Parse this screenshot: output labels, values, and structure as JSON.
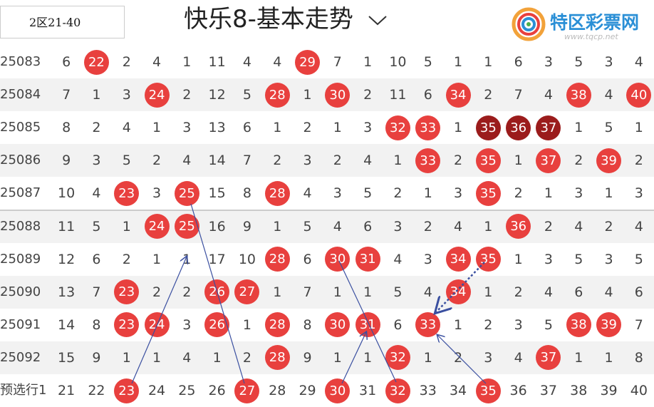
{
  "header": {
    "label": "2区21-40",
    "title": "快乐8-基本走势",
    "logo": "特区彩票网",
    "url": "www.tqcp.net"
  },
  "table": {
    "rows": [
      {
        "period": "25083",
        "cells": [
          6,
          {
            "value": 22,
            "mark": "red"
          },
          2,
          4,
          1,
          11,
          4,
          4,
          {
            "value": 29,
            "mark": "red"
          },
          7,
          1,
          10,
          5,
          1,
          1,
          6,
          3,
          5,
          3,
          4
        ]
      },
      {
        "period": "25084",
        "cells": [
          7,
          1,
          3,
          {
            "value": 24,
            "mark": "red"
          },
          2,
          12,
          5,
          {
            "value": 28,
            "mark": "red"
          },
          1,
          {
            "value": 30,
            "mark": "red"
          },
          2,
          11,
          6,
          {
            "value": 34,
            "mark": "red"
          },
          2,
          7,
          4,
          {
            "value": 38,
            "mark": "red"
          },
          4,
          {
            "value": 40,
            "mark": "red"
          }
        ]
      },
      {
        "period": "25085",
        "cells": [
          8,
          2,
          4,
          1,
          3,
          13,
          6,
          1,
          2,
          1,
          3,
          {
            "value": 32,
            "mark": "red"
          },
          {
            "value": 33,
            "mark": "red"
          },
          1,
          {
            "value": 35,
            "mark": "dark"
          },
          {
            "value": 36,
            "mark": "dark"
          },
          {
            "value": 37,
            "mark": "dark"
          },
          1,
          5,
          1
        ]
      },
      {
        "period": "25086",
        "cells": [
          9,
          3,
          5,
          2,
          4,
          14,
          7,
          2,
          3,
          2,
          4,
          1,
          {
            "value": 33,
            "mark": "red"
          },
          2,
          {
            "value": 35,
            "mark": "red"
          },
          1,
          {
            "value": 37,
            "mark": "red"
          },
          2,
          {
            "value": 39,
            "mark": "red"
          },
          2
        ]
      },
      {
        "period": "25087",
        "cells": [
          10,
          4,
          {
            "value": 23,
            "mark": "red"
          },
          3,
          {
            "value": 25,
            "mark": "red"
          },
          15,
          8,
          {
            "value": 28,
            "mark": "red"
          },
          4,
          3,
          5,
          2,
          1,
          3,
          {
            "value": 35,
            "mark": "red"
          },
          2,
          1,
          3,
          1,
          3
        ]
      },
      {
        "period": "25088",
        "cells": [
          11,
          5,
          1,
          {
            "value": 24,
            "mark": "red"
          },
          {
            "value": 25,
            "mark": "red"
          },
          16,
          9,
          1,
          5,
          4,
          6,
          3,
          2,
          4,
          1,
          {
            "value": 36,
            "mark": "red"
          },
          2,
          4,
          2,
          4
        ]
      },
      {
        "period": "25089",
        "cells": [
          12,
          6,
          2,
          1,
          1,
          17,
          10,
          {
            "value": 28,
            "mark": "red"
          },
          6,
          {
            "value": 30,
            "mark": "red"
          },
          {
            "value": 31,
            "mark": "red"
          },
          4,
          3,
          {
            "value": 34,
            "mark": "red"
          },
          {
            "value": 35,
            "mark": "red"
          },
          1,
          3,
          5,
          3,
          5
        ]
      },
      {
        "period": "25090",
        "cells": [
          13,
          7,
          {
            "value": 23,
            "mark": "red"
          },
          2,
          2,
          {
            "value": 26,
            "mark": "red"
          },
          {
            "value": 27,
            "mark": "red"
          },
          1,
          7,
          1,
          1,
          5,
          4,
          {
            "value": 34,
            "mark": "red"
          },
          1,
          2,
          4,
          6,
          4,
          6
        ]
      },
      {
        "period": "25091",
        "cells": [
          14,
          8,
          {
            "value": 23,
            "mark": "red"
          },
          {
            "value": 24,
            "mark": "red"
          },
          3,
          {
            "value": 26,
            "mark": "red"
          },
          1,
          {
            "value": 28,
            "mark": "red"
          },
          8,
          {
            "value": 30,
            "mark": "red"
          },
          {
            "value": 31,
            "mark": "red"
          },
          6,
          {
            "value": 33,
            "mark": "red"
          },
          1,
          2,
          3,
          5,
          {
            "value": 38,
            "mark": "red"
          },
          {
            "value": 39,
            "mark": "red"
          },
          7
        ]
      },
      {
        "period": "25092",
        "cells": [
          15,
          9,
          1,
          1,
          4,
          1,
          2,
          {
            "value": 28,
            "mark": "red"
          },
          9,
          1,
          1,
          {
            "value": 32,
            "mark": "red"
          },
          1,
          2,
          3,
          4,
          {
            "value": 37,
            "mark": "red"
          },
          1,
          1,
          8
        ]
      },
      {
        "period": "预选行1",
        "cells": [
          21,
          22,
          {
            "value": 23,
            "mark": "red"
          },
          24,
          25,
          26,
          {
            "value": 27,
            "mark": "red"
          },
          28,
          29,
          {
            "value": 30,
            "mark": "red"
          },
          31,
          {
            "value": 32,
            "mark": "red"
          },
          33,
          34,
          {
            "value": 35,
            "mark": "red"
          },
          36,
          37,
          38,
          39,
          40
        ]
      }
    ]
  }
}
